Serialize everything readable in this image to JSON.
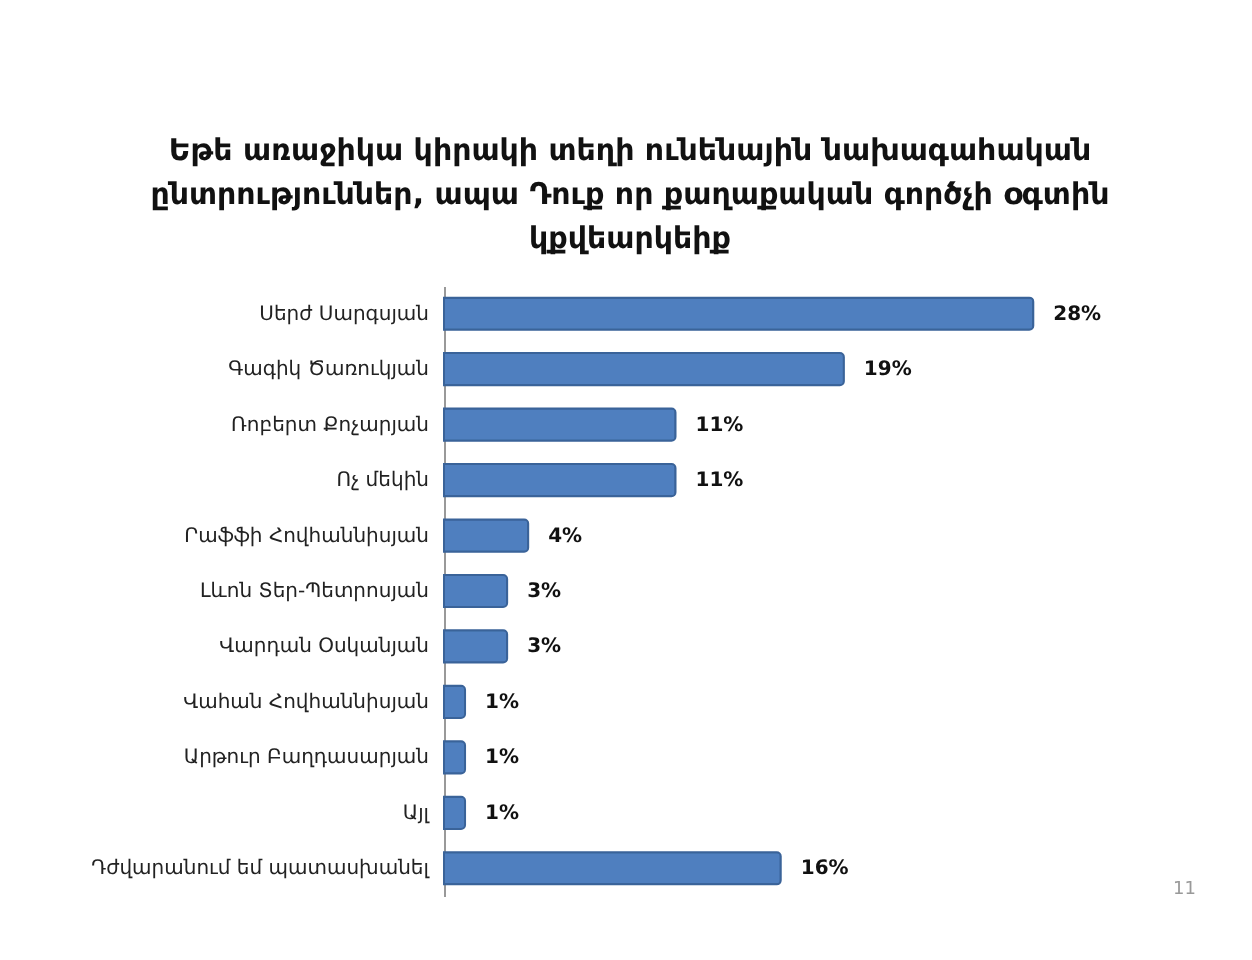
{
  "chart_data": {
    "type": "bar",
    "orientation": "horizontal",
    "title": "Եթե առաջիկա կիրակի տեղի ունենային նախագահական ընտրություններ, ապա Դուք որ քաղաքական գործչի օգտին կքվեարկեիք",
    "categories": [
      "Սերժ Սարգսյան",
      "Գագիկ Ծառուկյան",
      "Ռոբերտ Քոչարյան",
      "Ոչ մեկին",
      "Րաֆֆի Հովհաննիսյան",
      "Լևոն Տեր-Պետրոսյան",
      "Վարդան Օսկանյան",
      "Վահան Հովհաննիսյան",
      "Արթուր Բաղդասարյան",
      "Այլ",
      "Դժվարանում եմ պատասխանել"
    ],
    "values": [
      28,
      19,
      11,
      11,
      4,
      3,
      3,
      1,
      1,
      1,
      16
    ],
    "value_labels": [
      "28%",
      "19%",
      "11%",
      "11%",
      "4%",
      "3%",
      "3%",
      "1%",
      "1%",
      "1%",
      "16%"
    ],
    "color": "#4f7fbf",
    "annotations": [
      "11"
    ]
  }
}
